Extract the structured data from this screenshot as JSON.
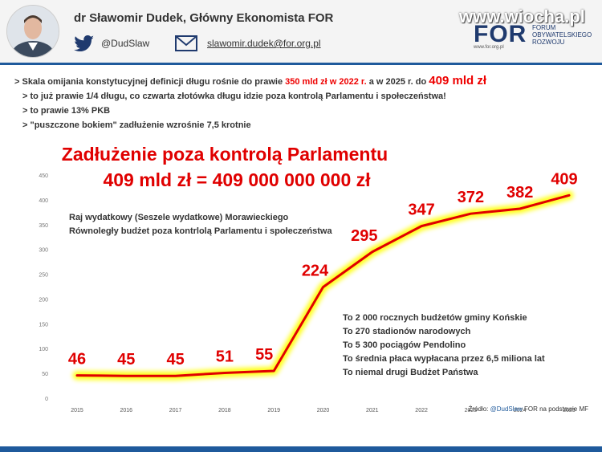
{
  "header": {
    "author": "dr Sławomir Dudek, Główny Ekonomista FOR",
    "twitter_handle": "@DudSlaw",
    "email": "slawomir.dudek@for.org.pl",
    "watermark": "www.wiocha.pl",
    "logo_text": "FOR",
    "logo_sub": "FORUM\nOBYWATELSKIEGO\nROZWOJU",
    "logo_url": "www.for.org.pl"
  },
  "bullets": {
    "line1_a": "> Skala omijania konstytucyjnej definicji długu rośnie do prawie ",
    "line1_b": "350 mld zł w 2022 r.",
    "line1_c": " a w 2025 r. do ",
    "line1_d": "409 mld zł",
    "line2": "> to już prawie 1/4 długu, co czwarta złotówka długu idzie poza kontrolą Parlamentu i społeczeństwa!",
    "line3": "> to prawie 13% PKB",
    "line4": "> \"puszczone bokiem\" zadłużenie wzrośnie 7,5 krotnie"
  },
  "chart_data": {
    "type": "line",
    "title": "Zadłużenie poza kontrolą Parlamentu",
    "subtitle": "409 mld zł = 409 000 000 000 zł",
    "x": [
      "2015",
      "2016",
      "2017",
      "2018",
      "2019",
      "2020",
      "2021",
      "2022",
      "2023",
      "2024",
      "2025"
    ],
    "values": [
      46,
      45,
      45,
      51,
      55,
      224,
      295,
      347,
      372,
      382,
      409
    ],
    "ylim": [
      0,
      450
    ],
    "yticks": [
      0,
      50,
      100,
      150,
      200,
      250,
      300,
      350,
      400,
      450
    ],
    "line_color": "#e00000",
    "glow_color": "#ffff00",
    "annotation_left": [
      "Raj wydatkowy (Seszele wydatkowe) Morawieckiego",
      "Równoległy budżet poza kontrlolą Parlamentu i społeczeństwa"
    ],
    "annotation_right": [
      "To 2 000 rocznych budżetów gminy Końskie",
      "To 270 stadionów narodowych",
      "To 5 300 pociągów Pendolino",
      "To średnia płaca wypłacana przez 6,5 miliona lat",
      "To niemal drugi Budżet Państwa"
    ],
    "source_a": "Źródło: ",
    "source_b": "@DudSlaw",
    "source_c": " FOR na podstawie MF"
  }
}
